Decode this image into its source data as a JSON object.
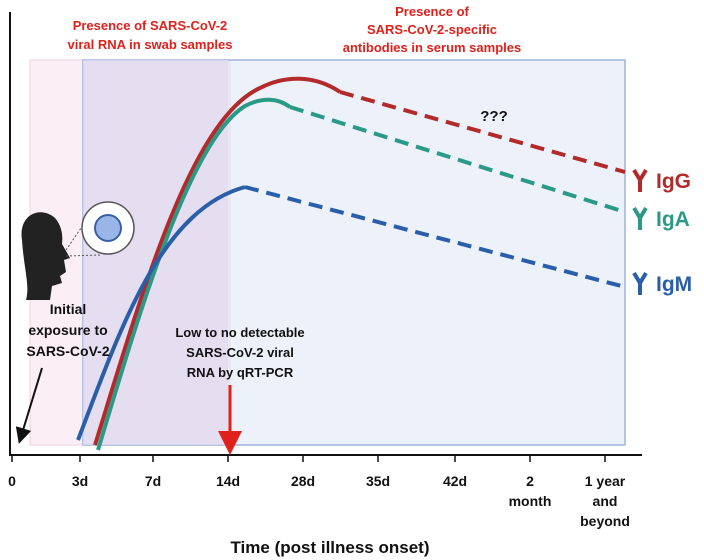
{
  "rna_note": {
    "lines": [
      "Presence of SARS-CoV-2",
      "viral RNA in swab samples"
    ]
  },
  "antibody_note": {
    "lines": [
      "Presence of",
      "SARS-CoV-2-specific",
      "antibodies in serum samples"
    ]
  },
  "unknown_note": "???",
  "exposure_note": {
    "lines": [
      "Initial",
      "exposure to",
      "SARS-CoV-2"
    ]
  },
  "pcr_note": {
    "lines": [
      "Low to no detectable",
      "SARS-CoV-2 viral",
      "RNA by qRT-PCR"
    ]
  },
  "antibodies": [
    {
      "label": "IgG",
      "color": "#b22a2a"
    },
    {
      "label": "IgA",
      "color": "#2a9a86"
    },
    {
      "label": "IgM",
      "color": "#2a5ea8"
    }
  ],
  "x_ticks": [
    [
      "0"
    ],
    [
      "3d"
    ],
    [
      "7d"
    ],
    [
      "14d"
    ],
    [
      "28d"
    ],
    [
      "35d"
    ],
    [
      "42d"
    ],
    [
      "2",
      "month"
    ],
    [
      "1 year",
      "and",
      "beyond"
    ]
  ],
  "x_axis_title": "Time (post illness onset)"
}
